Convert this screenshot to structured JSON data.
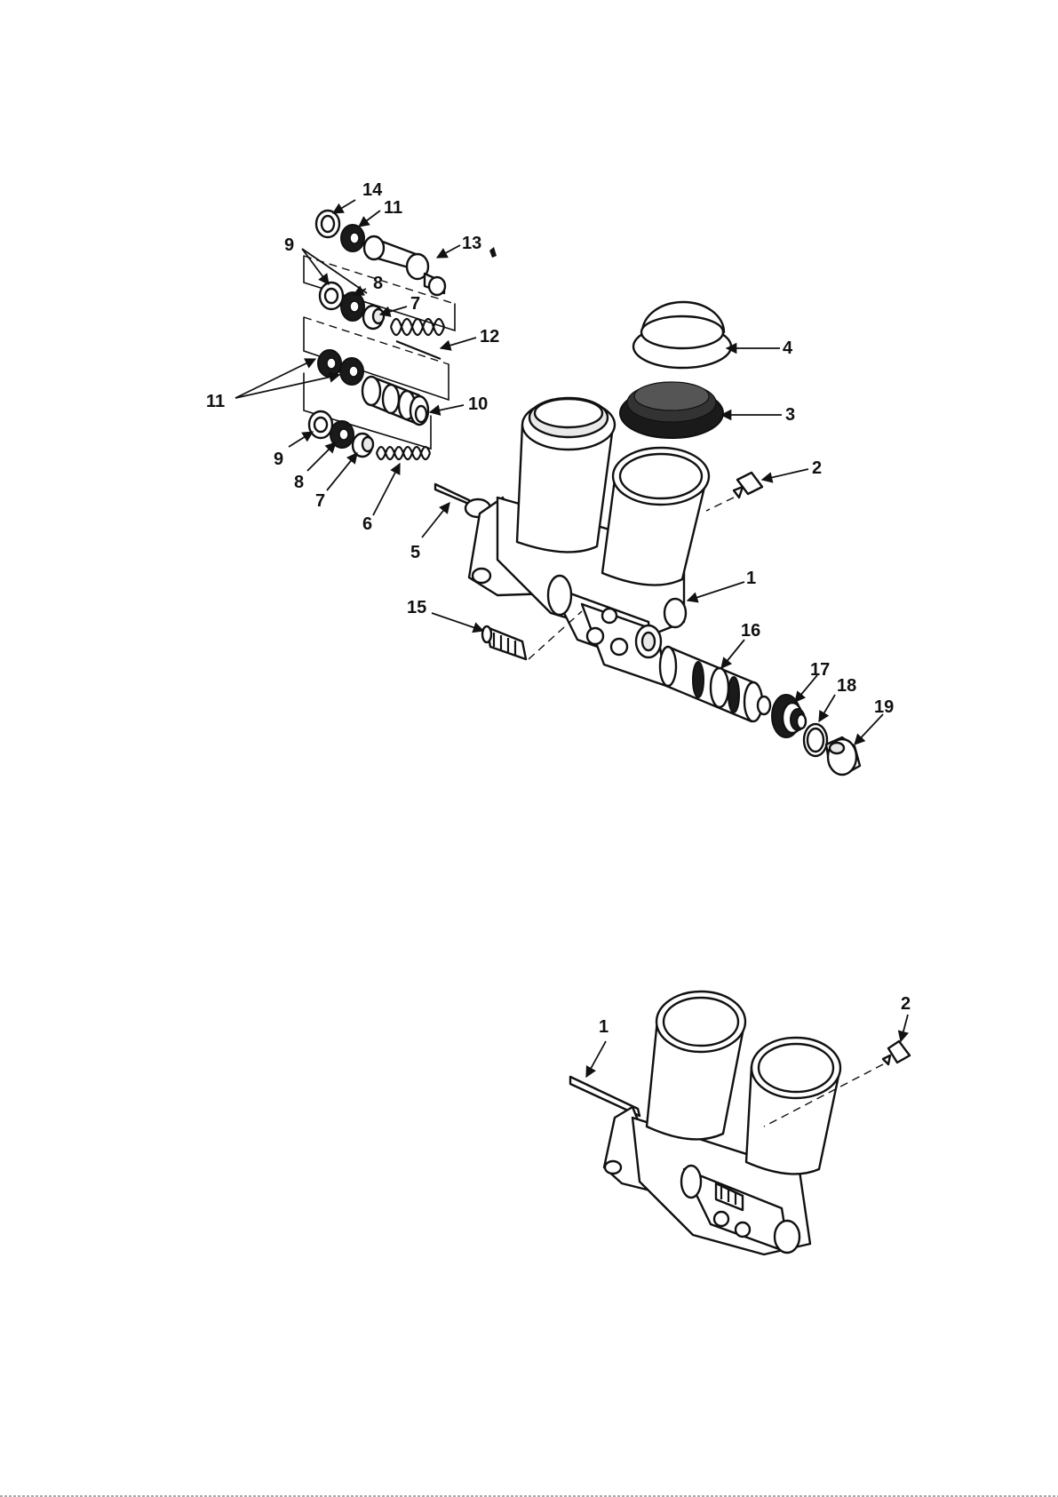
{
  "figure_top": {
    "callouts": {
      "c1": "1",
      "c2": "2",
      "c3": "3",
      "c4": "4",
      "c5": "5",
      "c6": "6",
      "c7a": "7",
      "c7b": "7",
      "c8a": "8",
      "c8b": "8",
      "c9a": "9",
      "c9b": "9",
      "c10": "10",
      "c11a": "11",
      "c11b": "11",
      "c12": "12",
      "c13": "13",
      "c14": "14",
      "c15": "15",
      "c16": "16",
      "c17": "17",
      "c18": "18",
      "c19": "19"
    }
  },
  "figure_bottom": {
    "callouts": {
      "c1": "1",
      "c2": "2"
    }
  },
  "colors": {
    "line": "#111111",
    "paper": "#ffffff"
  }
}
